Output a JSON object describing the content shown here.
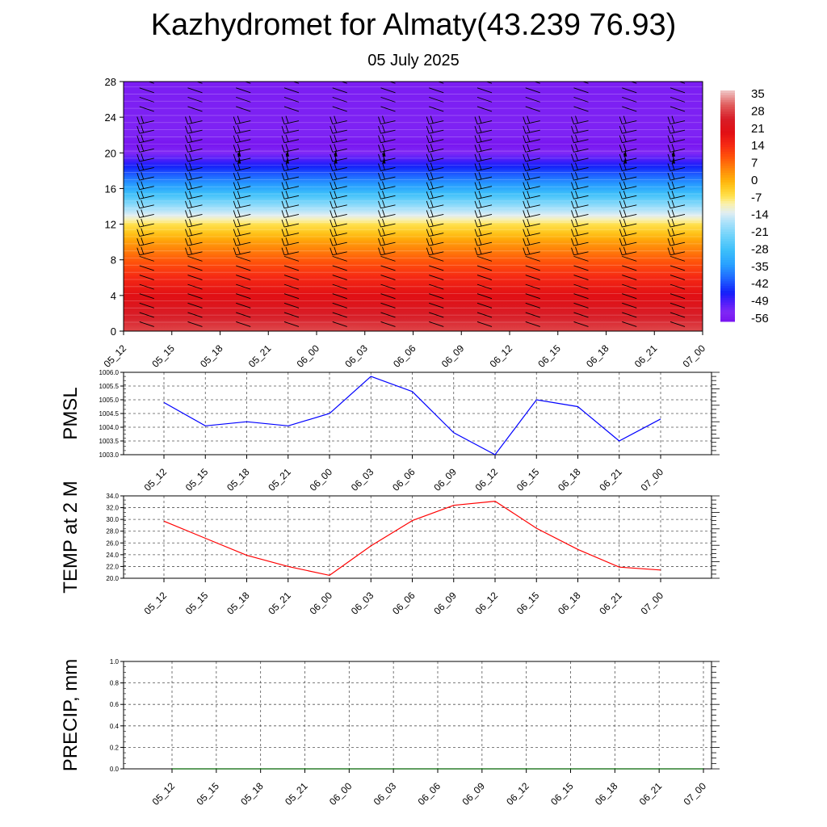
{
  "title": "Kazhydromet for Almaty(43.239 76.93)",
  "subtitle": "05 July 2025",
  "colors": {
    "pmsl_line": "#0000ff",
    "temp_line": "#ff0000",
    "precip_line": "#006400",
    "wind_barb": "#000000",
    "grid": "#000000"
  },
  "chart_data": [
    {
      "type": "heatmap",
      "name": "vertical-cross-section",
      "x_ticks": [
        "05_12",
        "05_15",
        "05_18",
        "05_21",
        "06_00",
        "06_03",
        "06_06",
        "06_09",
        "06_12",
        "06_15",
        "06_18",
        "06_21",
        "07_00"
      ],
      "y_ticks": [
        0,
        4,
        8,
        12,
        16,
        20,
        24,
        28
      ],
      "ylim": [
        0,
        28
      ],
      "colorbar_labels": [
        35,
        28,
        21,
        14,
        7,
        0,
        -7,
        -14,
        -21,
        -28,
        -35,
        -42,
        -49,
        -56
      ],
      "colorbar_range": [
        -60,
        38
      ],
      "temperature_profile": [
        {
          "h": 0,
          "t": 30
        },
        {
          "h": 2,
          "t": 25
        },
        {
          "h": 4,
          "t": 20
        },
        {
          "h": 6,
          "t": 15
        },
        {
          "h": 8,
          "t": 9
        },
        {
          "h": 10,
          "t": 2
        },
        {
          "h": 12,
          "t": -7
        },
        {
          "h": 13,
          "t": -14
        },
        {
          "h": 14,
          "t": -20
        },
        {
          "h": 16,
          "t": -34
        },
        {
          "h": 18,
          "t": -45
        },
        {
          "h": 20,
          "t": -56
        },
        {
          "h": 21,
          "t": -60
        },
        {
          "h": 22,
          "t": -57
        },
        {
          "h": 28,
          "t": -58
        }
      ],
      "wind_barbs": true,
      "grid": false
    },
    {
      "type": "line",
      "name": "pmsl",
      "ylabel": "PMSL",
      "categories": [
        "05_12",
        "05_15",
        "05_18",
        "05_21",
        "06_00",
        "06_03",
        "06_06",
        "06_09",
        "06_12",
        "06_15",
        "06_18",
        "06_21",
        "07_00"
      ],
      "y_ticks": [
        "1003.0",
        "1003.5",
        "1004.0",
        "1004.5",
        "1005.0",
        "1005.5",
        "1006.0"
      ],
      "ylim": [
        1003.0,
        1006.0
      ],
      "values": [
        1004.9,
        1004.05,
        1004.2,
        1004.05,
        1004.5,
        1005.85,
        1005.3,
        1003.8,
        1003.0,
        1005.0,
        1004.75,
        1003.5,
        1004.3
      ],
      "grid": true
    },
    {
      "type": "line",
      "name": "temp2m",
      "ylabel": "TEMP at 2 M",
      "categories": [
        "05_12",
        "05_15",
        "05_18",
        "05_21",
        "06_00",
        "06_03",
        "06_06",
        "06_09",
        "06_12",
        "06_15",
        "06_18",
        "06_21",
        "07_00"
      ],
      "y_ticks": [
        "20.0",
        "22.0",
        "24.0",
        "26.0",
        "28.0",
        "30.0",
        "32.0",
        "34.0"
      ],
      "ylim": [
        20.0,
        34.0
      ],
      "values": [
        29.7,
        26.8,
        23.9,
        22.0,
        20.5,
        25.5,
        29.8,
        32.4,
        33.1,
        28.5,
        24.9,
        21.9,
        21.4
      ],
      "grid": true
    },
    {
      "type": "line",
      "name": "precip",
      "ylabel": "PRECIP, mm",
      "categories": [
        "05_12",
        "05_15",
        "05_18",
        "05_21",
        "06_00",
        "06_03",
        "06_06",
        "06_09",
        "06_12",
        "06_15",
        "06_18",
        "06_21",
        "07_00"
      ],
      "y_ticks": [
        "0.0",
        "0.2",
        "0.4",
        "0.6",
        "0.8",
        "1.0"
      ],
      "ylim": [
        0.0,
        1.0
      ],
      "values": [
        0,
        0,
        0,
        0,
        0,
        0,
        0,
        0,
        0,
        0,
        0,
        0,
        0
      ],
      "grid": true
    }
  ]
}
